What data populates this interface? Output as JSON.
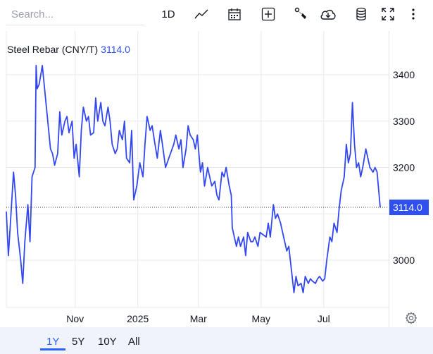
{
  "search": {
    "placeholder": "Search..."
  },
  "toolbar": {
    "interval_label": "1D",
    "icons": [
      "line-chart-icon",
      "calendar-icon",
      "plus-box-icon",
      "wrench-icon",
      "cloud-download-icon",
      "database-icon",
      "fullscreen-icon",
      "more-icon"
    ]
  },
  "legend": {
    "symbol": "Steel Rebar (CNY/T)",
    "last_value": "3114.0"
  },
  "range_buttons": {
    "r1y": "1Y",
    "r5y": "5Y",
    "r10y": "10Y",
    "rall": "All",
    "active": "1Y"
  },
  "colors": {
    "line": "#3347f0",
    "price_label_bg": "#2f4ff0",
    "accent": "#2962ff",
    "grid": "#e6e9ef"
  },
  "chart_data": {
    "type": "line",
    "title": "Steel Rebar (CNY/T)",
    "xlabel": "",
    "ylabel": "",
    "grid": true,
    "ylim": [
      2900,
      3450
    ],
    "y_ticks": [
      3000,
      3100,
      3200,
      3300,
      3400
    ],
    "y_tick_labels": [
      "3000",
      "",
      "3200",
      "3300",
      "3400"
    ],
    "x_ticks": [
      {
        "label": "Nov",
        "date": "2024-11-01"
      },
      {
        "label": "2025",
        "date": "2025-01-01"
      },
      {
        "label": "Mar",
        "date": "2025-03-01"
      },
      {
        "label": "May",
        "date": "2025-05-01"
      },
      {
        "label": "Jul",
        "date": "2025-07-01"
      }
    ],
    "last_value": 3114.0,
    "series": [
      {
        "values": [
          [
            "2024-08-26",
            3105
          ],
          [
            "2024-08-28",
            3010
          ],
          [
            "2024-08-30",
            3080
          ],
          [
            "2024-09-02",
            3190
          ],
          [
            "2024-09-04",
            3140
          ],
          [
            "2024-09-06",
            3060
          ],
          [
            "2024-09-09",
            3000
          ],
          [
            "2024-09-11",
            2950
          ],
          [
            "2024-09-13",
            3040
          ],
          [
            "2024-09-16",
            3120
          ],
          [
            "2024-09-18",
            3040
          ],
          [
            "2024-09-20",
            3180
          ],
          [
            "2024-09-23",
            3200
          ],
          [
            "2024-09-24",
            3420
          ],
          [
            "2024-09-25",
            3370
          ],
          [
            "2024-09-27",
            3380
          ],
          [
            "2024-09-30",
            3420
          ],
          [
            "2024-10-08",
            3240
          ],
          [
            "2024-10-10",
            3230
          ],
          [
            "2024-10-12",
            3205
          ],
          [
            "2024-10-15",
            3230
          ],
          [
            "2024-10-17",
            3320
          ],
          [
            "2024-10-19",
            3270
          ],
          [
            "2024-10-22",
            3300
          ],
          [
            "2024-10-24",
            3310
          ],
          [
            "2024-10-26",
            3275
          ],
          [
            "2024-10-29",
            3300
          ],
          [
            "2024-10-31",
            3220
          ],
          [
            "2024-11-02",
            3250
          ],
          [
            "2024-11-05",
            3180
          ],
          [
            "2024-11-07",
            3280
          ],
          [
            "2024-11-09",
            3330
          ],
          [
            "2024-11-12",
            3300
          ],
          [
            "2024-11-14",
            3310
          ],
          [
            "2024-11-16",
            3270
          ],
          [
            "2024-11-19",
            3275
          ],
          [
            "2024-11-21",
            3350
          ],
          [
            "2024-11-23",
            3300
          ],
          [
            "2024-11-26",
            3340
          ],
          [
            "2024-11-28",
            3300
          ],
          [
            "2024-11-30",
            3290
          ],
          [
            "2024-12-03",
            3330
          ],
          [
            "2024-12-05",
            3300
          ],
          [
            "2024-12-07",
            3250
          ],
          [
            "2024-12-10",
            3230
          ],
          [
            "2024-12-12",
            3240
          ],
          [
            "2024-12-14",
            3280
          ],
          [
            "2024-12-17",
            3260
          ],
          [
            "2024-12-19",
            3300
          ],
          [
            "2024-12-21",
            3220
          ],
          [
            "2024-12-24",
            3210
          ],
          [
            "2024-12-26",
            3280
          ],
          [
            "2024-12-28",
            3130
          ],
          [
            "2024-12-31",
            3160
          ],
          [
            "2025-01-03",
            3210
          ],
          [
            "2025-01-06",
            3180
          ],
          [
            "2025-01-08",
            3250
          ],
          [
            "2025-01-10",
            3310
          ],
          [
            "2025-01-13",
            3280
          ],
          [
            "2025-01-15",
            3290
          ],
          [
            "2025-01-17",
            3260
          ],
          [
            "2025-01-20",
            3220
          ],
          [
            "2025-01-23",
            3280
          ],
          [
            "2025-01-25",
            3250
          ],
          [
            "2025-01-28",
            3200
          ],
          [
            "2025-02-05",
            3250
          ],
          [
            "2025-02-07",
            3270
          ],
          [
            "2025-02-10",
            3240
          ],
          [
            "2025-02-12",
            3260
          ],
          [
            "2025-02-14",
            3200
          ],
          [
            "2025-02-17",
            3240
          ],
          [
            "2025-02-19",
            3290
          ],
          [
            "2025-02-21",
            3270
          ],
          [
            "2025-02-24",
            3260
          ],
          [
            "2025-02-26",
            3240
          ],
          [
            "2025-02-28",
            3270
          ],
          [
            "2025-03-03",
            3190
          ],
          [
            "2025-03-05",
            3210
          ],
          [
            "2025-03-07",
            3160
          ],
          [
            "2025-03-10",
            3200
          ],
          [
            "2025-03-12",
            3180
          ],
          [
            "2025-03-14",
            3160
          ],
          [
            "2025-03-17",
            3170
          ],
          [
            "2025-03-19",
            3140
          ],
          [
            "2025-03-21",
            3130
          ],
          [
            "2025-03-24",
            3190
          ],
          [
            "2025-03-26",
            3180
          ],
          [
            "2025-03-28",
            3200
          ],
          [
            "2025-03-31",
            3160
          ],
          [
            "2025-04-02",
            3140
          ],
          [
            "2025-04-03",
            3070
          ],
          [
            "2025-04-07",
            3030
          ],
          [
            "2025-04-09",
            3050
          ],
          [
            "2025-04-11",
            3030
          ],
          [
            "2025-04-14",
            3050
          ],
          [
            "2025-04-16",
            3010
          ],
          [
            "2025-04-18",
            3060
          ],
          [
            "2025-04-21",
            3040
          ],
          [
            "2025-04-23",
            3040
          ],
          [
            "2025-04-25",
            3050
          ],
          [
            "2025-04-28",
            3030
          ],
          [
            "2025-04-30",
            3060
          ],
          [
            "2025-05-06",
            3050
          ],
          [
            "2025-05-08",
            3080
          ],
          [
            "2025-05-10",
            3050
          ],
          [
            "2025-05-13",
            3120
          ],
          [
            "2025-05-15",
            3090
          ],
          [
            "2025-05-17",
            3100
          ],
          [
            "2025-05-20",
            3080
          ],
          [
            "2025-05-22",
            3060
          ],
          [
            "2025-05-26",
            3020
          ],
          [
            "2025-05-28",
            3030
          ],
          [
            "2025-05-30",
            2990
          ],
          [
            "2025-06-02",
            2930
          ],
          [
            "2025-06-04",
            2965
          ],
          [
            "2025-06-06",
            2945
          ],
          [
            "2025-06-09",
            2950
          ],
          [
            "2025-06-11",
            2930
          ],
          [
            "2025-06-13",
            2965
          ],
          [
            "2025-06-16",
            2950
          ],
          [
            "2025-06-18",
            2960
          ],
          [
            "2025-06-20",
            2955
          ],
          [
            "2025-06-23",
            2950
          ],
          [
            "2025-06-25",
            2960
          ],
          [
            "2025-06-27",
            2965
          ],
          [
            "2025-06-30",
            2955
          ],
          [
            "2025-07-02",
            2960
          ],
          [
            "2025-07-04",
            3000
          ],
          [
            "2025-07-07",
            3050
          ],
          [
            "2025-07-09",
            3040
          ],
          [
            "2025-07-11",
            3080
          ],
          [
            "2025-07-14",
            3060
          ],
          [
            "2025-07-16",
            3110
          ],
          [
            "2025-07-18",
            3150
          ],
          [
            "2025-07-21",
            3180
          ],
          [
            "2025-07-23",
            3250
          ],
          [
            "2025-07-25",
            3210
          ],
          [
            "2025-07-27",
            3230
          ],
          [
            "2025-07-29",
            3340
          ],
          [
            "2025-07-31",
            3250
          ],
          [
            "2025-08-02",
            3200
          ],
          [
            "2025-08-04",
            3210
          ],
          [
            "2025-08-06",
            3180
          ],
          [
            "2025-08-08",
            3200
          ],
          [
            "2025-08-11",
            3240
          ],
          [
            "2025-08-13",
            3220
          ],
          [
            "2025-08-15",
            3200
          ],
          [
            "2025-08-18",
            3190
          ],
          [
            "2025-08-20",
            3200
          ],
          [
            "2025-08-22",
            3190
          ],
          [
            "2025-08-25",
            3114
          ]
        ]
      }
    ]
  }
}
